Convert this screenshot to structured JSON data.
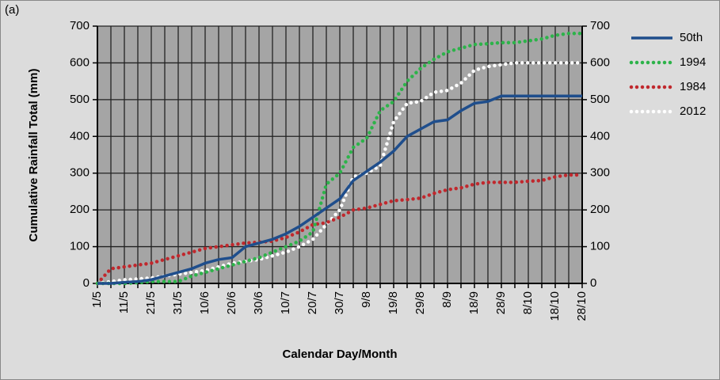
{
  "chart_data": {
    "type": "line",
    "panel_label": "(a)",
    "x_label": "Calendar Day/Month",
    "y_label": "Cumulative Rainfall Total (mm)",
    "categories": [
      "1/5",
      null,
      "11/5",
      null,
      "21/5",
      null,
      "31/5",
      null,
      "10/6",
      null,
      "20/6",
      null,
      "30/6",
      null,
      "10/7",
      null,
      "20/7",
      null,
      "30/7",
      null,
      "9/8",
      null,
      "19/8",
      null,
      "29/8",
      null,
      "8/9",
      null,
      "18/9",
      null,
      "28/9",
      null,
      "8/10",
      null,
      "18/10",
      null,
      "28/10"
    ],
    "ylim": [
      0,
      700
    ],
    "yticks": [
      0,
      100,
      200,
      300,
      400,
      500,
      600,
      700
    ],
    "y2lim": [
      0,
      700
    ],
    "y2ticks": [
      0,
      100,
      200,
      300,
      400,
      500,
      600,
      700
    ],
    "grid": true,
    "legend": "right",
    "series": [
      {
        "name": "50th",
        "color": "#1f4e8c",
        "line_style": "solid",
        "values": [
          0,
          0,
          3,
          5,
          10,
          20,
          30,
          40,
          55,
          65,
          70,
          100,
          110,
          120,
          135,
          155,
          180,
          205,
          230,
          280,
          305,
          330,
          360,
          400,
          420,
          440,
          445,
          470,
          490,
          495,
          510,
          510,
          510,
          510,
          510,
          510,
          510
        ]
      },
      {
        "name": "1994",
        "color": "#2db34a",
        "line_style": "dotted",
        "values": [
          0,
          0,
          0,
          2,
          5,
          5,
          5,
          20,
          30,
          40,
          50,
          60,
          70,
          85,
          100,
          115,
          140,
          270,
          300,
          370,
          395,
          470,
          495,
          550,
          585,
          610,
          630,
          640,
          650,
          652,
          655,
          655,
          660,
          665,
          675,
          680,
          680
        ]
      },
      {
        "name": "1984",
        "color": "#c0282d",
        "line_style": "dotted",
        "values": [
          0,
          40,
          45,
          50,
          55,
          65,
          75,
          85,
          95,
          100,
          105,
          110,
          112,
          115,
          125,
          140,
          160,
          165,
          180,
          200,
          205,
          215,
          225,
          228,
          232,
          245,
          255,
          260,
          270,
          275,
          275,
          275,
          278,
          280,
          290,
          295,
          295
        ]
      },
      {
        "name": "2012",
        "color": "#ffffff",
        "line_style": "dotted",
        "values": [
          0,
          5,
          10,
          12,
          15,
          20,
          25,
          30,
          35,
          45,
          55,
          60,
          65,
          75,
          85,
          100,
          120,
          160,
          200,
          290,
          300,
          320,
          440,
          490,
          495,
          520,
          525,
          545,
          580,
          590,
          595,
          600,
          600,
          600,
          600,
          600,
          600
        ]
      }
    ]
  }
}
